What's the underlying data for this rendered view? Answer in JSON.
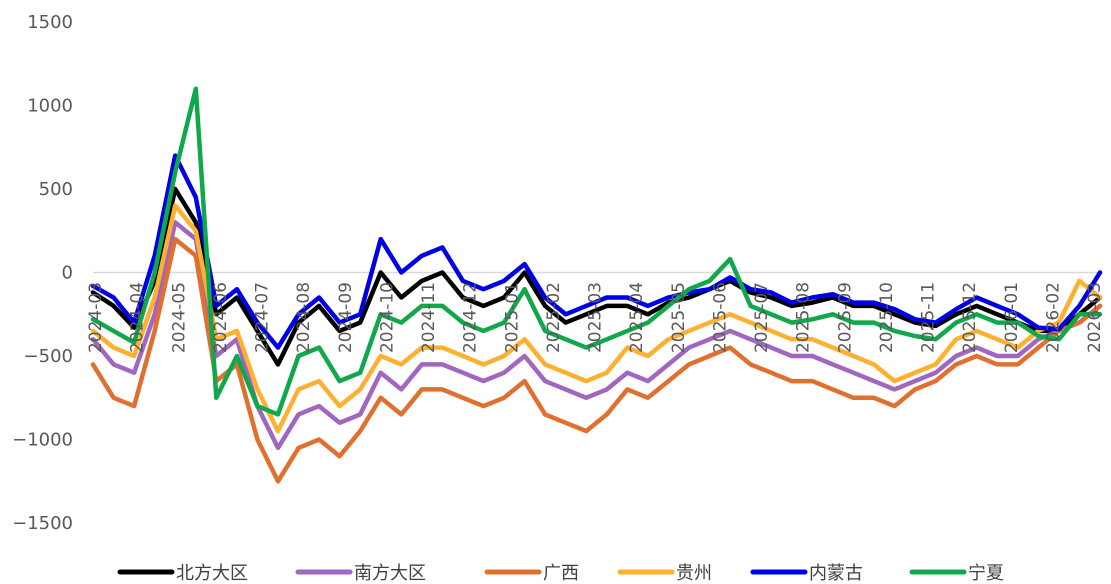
{
  "chart_data": {
    "type": "line",
    "title": "",
    "xlabel": "",
    "ylabel": "",
    "ylim": [
      -1500,
      1500
    ],
    "yticks": [
      1500,
      1000,
      500,
      0,
      -500,
      -1000,
      -1500
    ],
    "ytick_labels": [
      "1500",
      "1000",
      "500",
      "0",
      "−500",
      "−1000",
      "−1500"
    ],
    "xtick_labels": [
      "2024-03",
      "2024-04",
      "2024-05",
      "2024-06",
      "2024-07",
      "2024-08",
      "2024-09",
      "2024-10",
      "2024-11",
      "2024-12",
      "2025-01",
      "2025-02",
      "2025-03",
      "2025-04",
      "2025-05",
      "2025-06",
      "2025-07",
      "2025-08",
      "2025-09",
      "2025-10",
      "2025-11",
      "2025-12",
      "2026-01",
      "2026-02",
      "2026-03"
    ],
    "grid": false,
    "legend": "bottom",
    "x": [
      "2024-03",
      "2024-03",
      "2024-04",
      "2024-04",
      "2024-05",
      "2024-05",
      "2024-06",
      "2024-06",
      "2024-07",
      "2024-07",
      "2024-08",
      "2024-08",
      "2024-09",
      "2024-09",
      "2024-10",
      "2024-10",
      "2024-11",
      "2024-11",
      "2024-12",
      "2024-12",
      "2025-01",
      "2025-01",
      "2025-02",
      "2025-02",
      "2025-03",
      "2025-03",
      "2025-04",
      "2025-04",
      "2025-05",
      "2025-05",
      "2025-06",
      "2025-06",
      "2025-07",
      "2025-07",
      "2025-08",
      "2025-08",
      "2025-09",
      "2025-09",
      "2025-10",
      "2025-10",
      "2025-11",
      "2025-11",
      "2025-12",
      "2025-12",
      "2026-01",
      "2026-01",
      "2026-02",
      "2026-02",
      "2026-03",
      "2026-03"
    ],
    "series": [
      {
        "name": "北方大区",
        "color": "#000000",
        "values": [
          -120,
          -200,
          -330,
          -50,
          500,
          300,
          -250,
          -150,
          -350,
          -550,
          -300,
          -200,
          -350,
          -300,
          0,
          -150,
          -50,
          0,
          -150,
          -200,
          -150,
          0,
          -200,
          -300,
          -250,
          -200,
          -200,
          -250,
          -180,
          -150,
          -100,
          -50,
          -120,
          -150,
          -200,
          -180,
          -150,
          -200,
          -200,
          -250,
          -300,
          -320,
          -250,
          -200,
          -250,
          -300,
          -350,
          -350,
          -250,
          -150
        ]
      },
      {
        "name": "南方大区",
        "color": "#A066C0",
        "values": [
          -400,
          -550,
          -600,
          -250,
          300,
          200,
          -500,
          -400,
          -800,
          -1050,
          -850,
          -800,
          -900,
          -850,
          -600,
          -700,
          -550,
          -550,
          -600,
          -650,
          -600,
          -500,
          -650,
          -700,
          -750,
          -700,
          -600,
          -650,
          -550,
          -450,
          -400,
          -350,
          -400,
          -450,
          -500,
          -500,
          -550,
          -600,
          -650,
          -700,
          -650,
          -600,
          -500,
          -450,
          -500,
          -500,
          -400,
          -350,
          -300,
          -200
        ]
      },
      {
        "name": "广西",
        "color": "#E07030",
        "values": [
          -550,
          -750,
          -800,
          -350,
          200,
          100,
          -650,
          -550,
          -1000,
          -1250,
          -1050,
          -1000,
          -1100,
          -950,
          -750,
          -850,
          -700,
          -700,
          -750,
          -800,
          -750,
          -650,
          -850,
          -900,
          -950,
          -850,
          -700,
          -750,
          -650,
          -550,
          -500,
          -450,
          -550,
          -600,
          -650,
          -650,
          -700,
          -750,
          -750,
          -800,
          -700,
          -650,
          -550,
          -500,
          -550,
          -550,
          -450,
          -350,
          -300,
          -200
        ]
      },
      {
        "name": "贵州",
        "color": "#FFB030",
        "values": [
          -350,
          -450,
          -500,
          -150,
          400,
          250,
          -400,
          -350,
          -700,
          -950,
          -700,
          -650,
          -800,
          -700,
          -500,
          -550,
          -450,
          -450,
          -500,
          -550,
          -500,
          -400,
          -550,
          -600,
          -650,
          -600,
          -450,
          -500,
          -400,
          -350,
          -300,
          -250,
          -300,
          -350,
          -400,
          -400,
          -450,
          -500,
          -550,
          -650,
          -600,
          -550,
          -400,
          -350,
          -400,
          -450,
          -350,
          -300,
          -50,
          -150
        ]
      },
      {
        "name": "内蒙古",
        "color": "#0000E6",
        "values": [
          -80,
          -150,
          -300,
          100,
          700,
          450,
          -200,
          -100,
          -300,
          -450,
          -250,
          -150,
          -300,
          -250,
          200,
          0,
          100,
          150,
          -50,
          -100,
          -50,
          50,
          -150,
          -250,
          -200,
          -150,
          -150,
          -200,
          -150,
          -120,
          -100,
          -30,
          -100,
          -120,
          -180,
          -150,
          -130,
          -180,
          -180,
          -220,
          -280,
          -300,
          -220,
          -150,
          -200,
          -250,
          -330,
          -340,
          -200,
          0
        ]
      },
      {
        "name": "宁夏",
        "color": "#10A84A",
        "values": [
          -280,
          -350,
          -420,
          0,
          600,
          1100,
          -750,
          -500,
          -800,
          -850,
          -500,
          -450,
          -650,
          -600,
          -250,
          -300,
          -200,
          -200,
          -300,
          -350,
          -300,
          -100,
          -350,
          -400,
          -450,
          -400,
          -350,
          -300,
          -200,
          -100,
          -50,
          80,
          -200,
          -250,
          -300,
          -280,
          -250,
          -300,
          -300,
          -350,
          -380,
          -400,
          -300,
          -250,
          -300,
          -300,
          -380,
          -400,
          -250,
          -250
        ]
      }
    ]
  }
}
